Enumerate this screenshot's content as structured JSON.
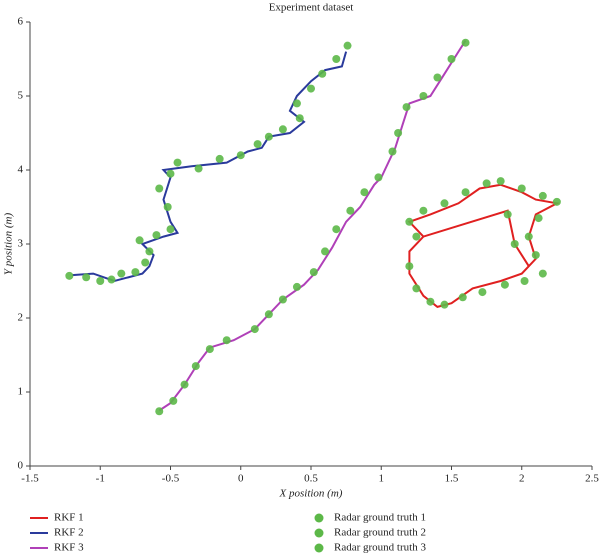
{
  "chart_data": {
    "type": "line",
    "title": "Experiment dataset",
    "x_label": "X position (m)",
    "y_label": "Y position (m)",
    "xlim": [
      -1.5,
      2.5
    ],
    "ylim": [
      0,
      6
    ],
    "xticks": [
      -1.5,
      -1,
      -0.5,
      0,
      0.5,
      1,
      1.5,
      2,
      2.5
    ],
    "yticks": [
      0,
      1,
      2,
      3,
      4,
      5,
      6
    ],
    "series": [
      {
        "name": "RKF 1",
        "type": "line",
        "color": "#e02020",
        "x": [
          1.3,
          1.2,
          1.35,
          1.55,
          1.7,
          1.85,
          2.0,
          2.1,
          2.25,
          2.1,
          2.05,
          2.1,
          2.0,
          1.85,
          1.65,
          1.5,
          1.4,
          1.3,
          1.2,
          1.2,
          1.3,
          1.9,
          1.95,
          2.05
        ],
        "values": [
          3.1,
          3.3,
          3.4,
          3.55,
          3.75,
          3.8,
          3.7,
          3.6,
          3.55,
          3.4,
          3.1,
          2.8,
          2.6,
          2.5,
          2.4,
          2.2,
          2.15,
          2.3,
          2.6,
          2.9,
          3.1,
          3.45,
          3.0,
          2.7
        ]
      },
      {
        "name": "RKF 2",
        "type": "line",
        "color": "#2a3a9c",
        "x": [
          -1.2,
          -1.05,
          -0.9,
          -0.7,
          -0.65,
          -0.62,
          -0.7,
          -0.55,
          -0.45,
          -0.5,
          -0.55,
          -0.5,
          -0.55,
          -0.35,
          -0.1,
          0.05,
          0.15,
          0.2,
          0.35,
          0.45,
          0.35,
          0.4,
          0.5,
          0.6,
          0.72,
          0.75
        ],
        "values": [
          2.58,
          2.6,
          2.5,
          2.6,
          2.7,
          2.85,
          3.0,
          3.1,
          3.15,
          3.3,
          3.6,
          3.9,
          4.0,
          4.05,
          4.1,
          4.25,
          4.3,
          4.45,
          4.5,
          4.65,
          4.8,
          5.0,
          5.2,
          5.35,
          5.4,
          5.6
        ]
      },
      {
        "name": "RKF 3",
        "type": "line",
        "color": "#b040b8",
        "x": [
          -0.58,
          -0.5,
          -0.4,
          -0.3,
          -0.22,
          -0.05,
          0.1,
          0.2,
          0.3,
          0.45,
          0.55,
          0.65,
          0.75,
          0.85,
          0.95,
          1.0,
          1.1,
          1.15,
          1.2,
          1.35,
          1.45,
          1.55,
          1.6
        ],
        "values": [
          0.75,
          0.85,
          1.1,
          1.4,
          1.6,
          1.7,
          1.85,
          2.05,
          2.25,
          2.45,
          2.65,
          2.95,
          3.3,
          3.5,
          3.8,
          3.9,
          4.3,
          4.6,
          4.9,
          5.0,
          5.3,
          5.6,
          5.75
        ]
      },
      {
        "name": "Radar ground truth 1",
        "type": "scatter",
        "color": "#5cb848",
        "x": [
          1.25,
          1.2,
          1.3,
          1.45,
          1.6,
          1.75,
          1.85,
          2.0,
          2.15,
          2.25,
          2.12,
          2.05,
          2.1,
          2.15,
          2.02,
          1.88,
          1.72,
          1.58,
          1.45,
          1.35,
          1.25,
          1.2,
          1.9,
          1.95
        ],
        "values": [
          3.1,
          3.3,
          3.45,
          3.55,
          3.7,
          3.82,
          3.85,
          3.75,
          3.65,
          3.57,
          3.35,
          3.1,
          2.85,
          2.6,
          2.5,
          2.45,
          2.35,
          2.28,
          2.18,
          2.22,
          2.4,
          2.7,
          3.4,
          3.0
        ]
      },
      {
        "name": "Radar ground truth 2",
        "type": "scatter",
        "color": "#5cb848",
        "x": [
          -1.22,
          -1.1,
          -1.0,
          -0.92,
          -0.85,
          -0.75,
          -0.68,
          -0.65,
          -0.72,
          -0.6,
          -0.5,
          -0.52,
          -0.58,
          -0.5,
          -0.45,
          -0.3,
          -0.15,
          0.0,
          0.12,
          0.2,
          0.3,
          0.42,
          0.4,
          0.5,
          0.58,
          0.68,
          0.76
        ],
        "values": [
          2.57,
          2.55,
          2.5,
          2.52,
          2.6,
          2.62,
          2.75,
          2.9,
          3.05,
          3.12,
          3.2,
          3.5,
          3.75,
          3.95,
          4.1,
          4.02,
          4.15,
          4.2,
          4.35,
          4.45,
          4.55,
          4.7,
          4.9,
          5.1,
          5.3,
          5.5,
          5.68
        ]
      },
      {
        "name": "Radar ground truth 3",
        "type": "scatter",
        "color": "#5cb848",
        "x": [
          -0.58,
          -0.48,
          -0.4,
          -0.32,
          -0.22,
          -0.1,
          0.1,
          0.2,
          0.3,
          0.4,
          0.52,
          0.6,
          0.68,
          0.78,
          0.88,
          0.98,
          1.08,
          1.12,
          1.18,
          1.3,
          1.4,
          1.5,
          1.6
        ],
        "values": [
          0.74,
          0.88,
          1.1,
          1.35,
          1.58,
          1.7,
          1.85,
          2.05,
          2.25,
          2.42,
          2.62,
          2.9,
          3.2,
          3.45,
          3.7,
          3.9,
          4.25,
          4.5,
          4.85,
          5.0,
          5.25,
          5.5,
          5.72
        ]
      }
    ]
  }
}
